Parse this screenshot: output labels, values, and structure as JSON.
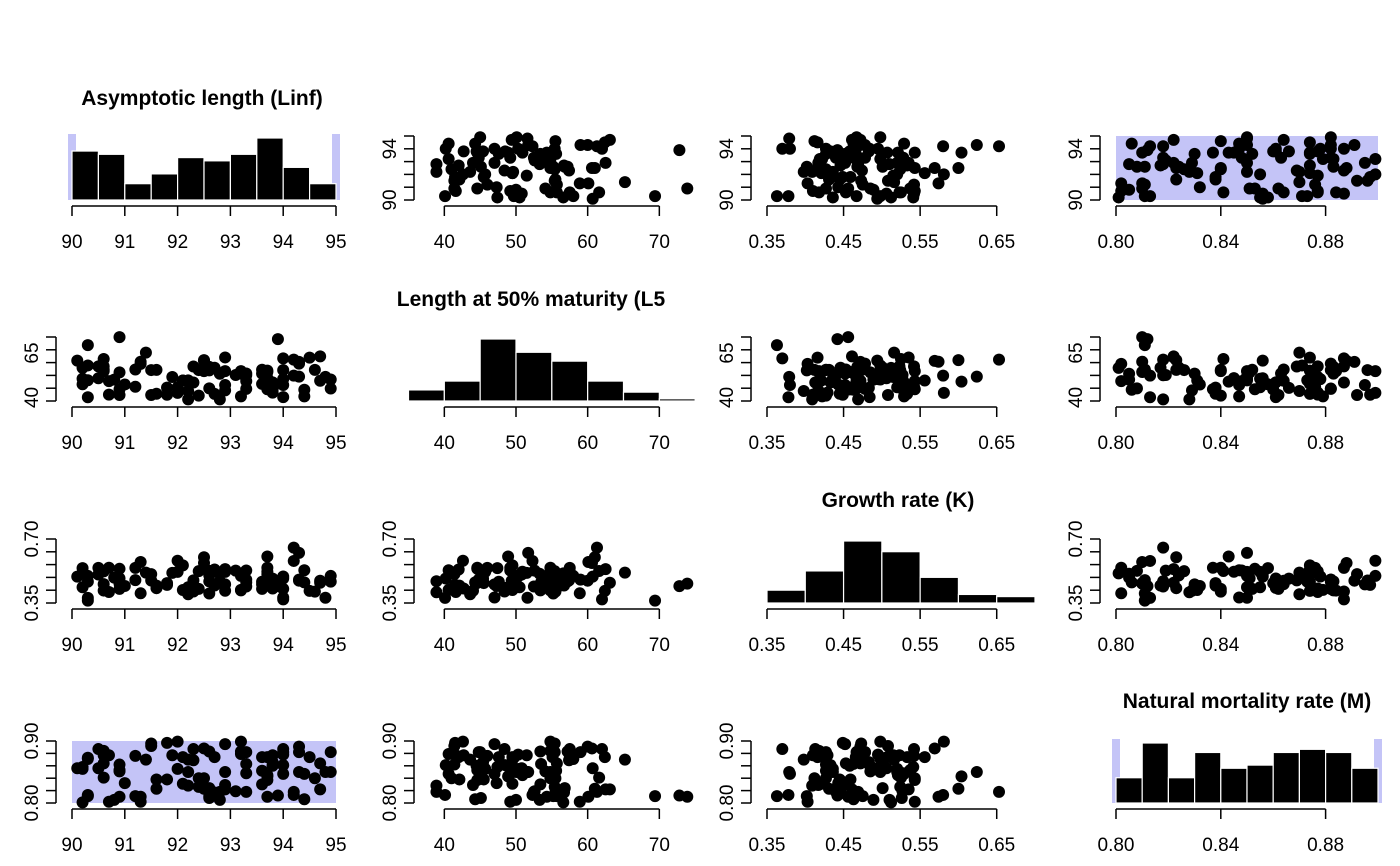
{
  "colors": {
    "points": "#000000",
    "bars": "#000000",
    "range_shade": "#c4c4f7",
    "axis": "#000000"
  },
  "variables": [
    {
      "key": "Linf",
      "title": "Asymptotic length (Linf)"
    },
    {
      "key": "L50",
      "title": "Length at 50% maturity (L5"
    },
    {
      "key": "K",
      "title": "Growth rate (K)"
    },
    {
      "key": "M",
      "title": "Natural mortality rate (M)"
    }
  ],
  "chart_data": {
    "type": "scatter",
    "layout": "4x4 pairs-plot matrix: histograms on the diagonal, scatter plots off the diagonal; the x-axis of each panel is the column variable and the y-axis is the row variable",
    "axes": {
      "Linf": {
        "range": [
          90,
          95
        ],
        "ticks": [
          "90",
          "91",
          "92",
          "93",
          "94",
          "95"
        ],
        "y_ticks": [
          "90",
          "94"
        ]
      },
      "L50": {
        "range": [
          38,
          74
        ],
        "ticks": [
          "40",
          "50",
          "60",
          "70"
        ],
        "y_ticks": [
          "40",
          "65"
        ]
      },
      "K": {
        "range": [
          0.35,
          0.7
        ],
        "ticks": [
          "0.35",
          "0.45",
          "0.55",
          "0.65"
        ],
        "y_ticks": [
          "0.35",
          "0.70"
        ]
      },
      "M": {
        "range": [
          0.8,
          0.9
        ],
        "ticks": [
          "0.80",
          "0.84",
          "0.88"
        ],
        "y_ticks": [
          "0.80",
          "0.90"
        ]
      }
    },
    "highlighted_ranges": {
      "Linf": [
        90,
        95
      ],
      "M": [
        0.8,
        0.9
      ]
    },
    "histograms": {
      "Linf": {
        "bins": [
          90,
          90.5,
          91,
          91.5,
          92,
          92.5,
          93,
          93.5,
          94,
          94.5,
          95
        ],
        "counts": [
          15,
          14,
          5,
          8,
          13,
          12,
          14,
          19,
          10,
          5
        ]
      },
      "L50": {
        "bins": [
          35,
          40,
          45,
          50,
          55,
          60,
          65,
          70,
          75
        ],
        "counts": [
          5,
          9,
          28,
          22,
          18,
          9,
          4,
          1
        ]
      },
      "K": {
        "bins": [
          0.35,
          0.4,
          0.45,
          0.5,
          0.55,
          0.6,
          0.65,
          0.7
        ],
        "counts": [
          6,
          15,
          29,
          24,
          12,
          4,
          3
        ]
      },
      "M": {
        "bins": [
          0.8,
          0.81,
          0.82,
          0.83,
          0.84,
          0.85,
          0.86,
          0.87,
          0.88,
          0.89,
          0.9
        ],
        "counts": [
          8,
          19,
          8,
          16,
          11,
          12,
          16,
          17,
          16,
          11
        ]
      }
    },
    "samples": {
      "Linf": [
        90.1,
        93.7,
        94.4,
        90.9,
        90.6,
        92.5,
        92.6,
        94.7,
        90.3,
        91.8,
        92.9,
        94.9,
        93.8,
        91.0,
        93.2,
        91.2,
        92.9,
        90.3,
        92.5,
        92.2,
        91.9,
        93.3,
        92.4,
        93.1,
        92.3,
        94.0,
        94.0,
        94.8,
        94.0,
        94.4,
        92.9,
        90.9,
        91.8,
        92.1,
        91.5,
        90.6,
        93.8,
        94.0,
        93.3,
        93.3,
        90.6,
        93.7,
        90.8,
        92.7,
        92.2,
        92.6,
        90.9,
        91.6,
        93.2,
        92.7,
        93.7,
        92.0,
        94.3,
        91.2,
        92.8,
        90.3,
        93.7,
        94.6,
        90.7,
        90.5,
        90.2,
        90.5,
        92.2,
        90.6,
        91.4,
        94.2,
        93.2,
        94.2,
        93.8,
        90.7,
        92.8,
        94.3,
        93.6,
        90.2,
        92.3,
        94.9,
        92.5,
        92.6,
        90.3,
        93.9,
        92.4,
        93.7,
        94.0,
        93.3,
        92.1,
        93.6,
        93.8,
        90.2,
        91.6,
        94.5,
        90.9,
        91.3,
        92.0,
        91.5,
        94.7,
        92.9,
        92.6,
        94.3,
        91.3,
        93.6
      ],
      "L50": [
        60.7,
        54.3,
        44.3,
        54.1,
        61.6,
        60.6,
        45.1,
        49.4,
        69.4,
        41.5,
        44.0,
        45.0,
        44.5,
        47.3,
        54.8,
        55.7,
        54.8,
        58.0,
        61.0,
        38.9,
        51.5,
        53.5,
        41.0,
        52.6,
        57.4,
        47.0,
        40.2,
        51.6,
        55.4,
        40.6,
        62.5,
        73.9,
        45.5,
        49.5,
        41.4,
        57.5,
        45.4,
        50.3,
        49.2,
        52.5,
        55.7,
        48.9,
        50.0,
        42.0,
        49.6,
        56.8,
        44.6,
        42.1,
        53.4,
        56.7,
        55.1,
        42.6,
        60.0,
        46.0,
        38.9,
        40.1,
        44.6,
        55.5,
        41.6,
        57.5,
        50.5,
        50.8,
        43.6,
        54.8,
        65.2,
        61.3,
        40.6,
        52.3,
        42.7,
        49.2,
        53.3,
        51.7,
        47.6,
        47.4,
        48.4,
        50.1,
        54.8,
        55.2,
        49.7,
        72.8,
        55.4,
        50.9,
        62.0,
        44.8,
        49.5,
        55.6,
        48.5,
        56.6,
        55.5,
        62.4,
        41.4,
        58.9,
        45.7,
        55.4,
        63.1,
        47.0,
        57.2,
        59.0,
        60.1,
        53.4
      ],
      "K": [
        0.494,
        0.459,
        0.463,
        0.485,
        0.525,
        0.569,
        0.526,
        0.472,
        0.363,
        0.449,
        0.417,
        0.467,
        0.458,
        0.443,
        0.498,
        0.475,
        0.52,
        0.498,
        0.6,
        0.409,
        0.515,
        0.463,
        0.427,
        0.527,
        0.474,
        0.38,
        0.484,
        0.379,
        0.427,
        0.529,
        0.535,
        0.456,
        0.459,
        0.556,
        0.508,
        0.523,
        0.483,
        0.495,
        0.528,
        0.44,
        0.453,
        0.604,
        0.489,
        0.533,
        0.436,
        0.501,
        0.537,
        0.445,
        0.419,
        0.446,
        0.507,
        0.581,
        0.472,
        0.542,
        0.469,
        0.378,
        0.543,
        0.412,
        0.41,
        0.542,
        0.436,
        0.506,
        0.398,
        0.418,
        0.516,
        0.653,
        0.422,
        0.58,
        0.429,
        0.543,
        0.51,
        0.624,
        0.466,
        0.541,
        0.413,
        0.498,
        0.543,
        0.402,
        0.467,
        0.442,
        0.524,
        0.521,
        0.37,
        0.478,
        0.421,
        0.427,
        0.433,
        0.512,
        0.431,
        0.416,
        0.427,
        0.403,
        0.52,
        0.473,
        0.461,
        0.452,
        0.468,
        0.478,
        0.574,
        0.452
      ],
      "M": [
        0.856,
        0.81,
        0.806,
        0.851,
        0.841,
        0.888,
        0.808,
        0.864,
        0.811,
        0.897,
        0.829,
        0.882,
        0.86,
        0.832,
        0.899,
        0.811,
        0.85,
        0.871,
        0.823,
        0.828,
        0.877,
        0.863,
        0.84,
        0.819,
        0.869,
        0.847,
        0.861,
        0.85,
        0.882,
        0.847,
        0.822,
        0.81,
        0.838,
        0.874,
        0.892,
        0.877,
        0.866,
        0.878,
        0.848,
        0.818,
        0.864,
        0.843,
        0.805,
        0.874,
        0.85,
        0.824,
        0.853,
        0.838,
        0.883,
        0.817,
        0.874,
        0.899,
        0.891,
        0.876,
        0.818,
        0.813,
        0.837,
        0.84,
        0.877,
        0.887,
        0.855,
        0.856,
        0.87,
        0.884,
        0.87,
        0.818,
        0.879,
        0.813,
        0.877,
        0.802,
        0.805,
        0.85,
        0.874,
        0.858,
        0.887,
        0.85,
        0.84,
        0.811,
        0.873,
        0.812,
        0.826,
        0.845,
        0.887,
        0.882,
        0.831,
        0.852,
        0.861,
        0.801,
        0.823,
        0.874,
        0.862,
        0.802,
        0.855,
        0.896,
        0.822,
        0.895,
        0.883,
        0.882,
        0.81,
        0.83
      ]
    }
  }
}
